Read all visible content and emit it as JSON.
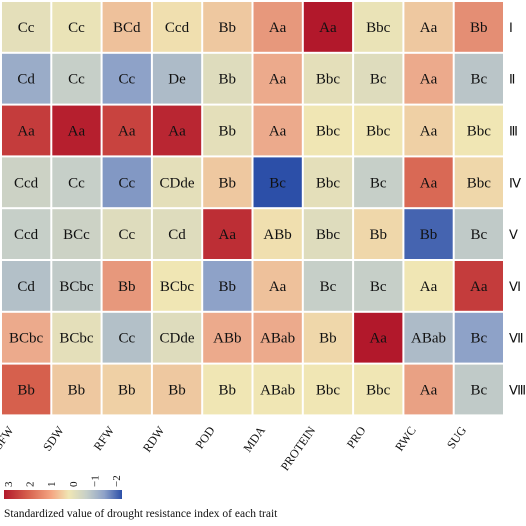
{
  "chart_data": {
    "type": "heatmap",
    "columns": [
      "SFW",
      "SDW",
      "RFW",
      "RDW",
      "POD",
      "MDA",
      "PROTEIN",
      "PRO",
      "RWC",
      "SUG"
    ],
    "rows": [
      "Ⅰ",
      "Ⅱ",
      "Ⅲ",
      "Ⅳ",
      "Ⅴ",
      "Ⅵ",
      "Ⅶ",
      "Ⅷ"
    ],
    "labels": [
      [
        "Cc",
        "Cc",
        "BCd",
        "Ccd",
        "Bb",
        "Aa",
        "Aa",
        "Bbc",
        "Aa",
        "Bb"
      ],
      [
        "Cd",
        "Cc",
        "Cc",
        "De",
        "Bb",
        "Aa",
        "Bbc",
        "Bc",
        "Aa",
        "Bc"
      ],
      [
        "Aa",
        "Aa",
        "Aa",
        "Aa",
        "Bb",
        "Aa",
        "Bbc",
        "Bbc",
        "Aa",
        "Bbc"
      ],
      [
        "Ccd",
        "Cc",
        "Cc",
        "CDde",
        "Bb",
        "Bc",
        "Bbc",
        "Bc",
        "Aa",
        "Bbc"
      ],
      [
        "Ccd",
        "BCc",
        "Cc",
        "Cd",
        "Aa",
        "ABb",
        "Bbc",
        "Bb",
        "Bb",
        "Bc"
      ],
      [
        "Cd",
        "BCbc",
        "Bb",
        "BCbc",
        "Bb",
        "Aa",
        "Bc",
        "Bc",
        "Aa",
        "Aa"
      ],
      [
        "BCbc",
        "BCbc",
        "Cc",
        "CDde",
        "ABb",
        "ABab",
        "Bb",
        "Aa",
        "ABab",
        "Bc"
      ],
      [
        "Bb",
        "Bb",
        "Bb",
        "Bb",
        "Bb",
        "ABab",
        "Bbc",
        "Bbc",
        "Aa",
        "Bc"
      ]
    ],
    "values": [
      [
        0.2,
        0.3,
        0.9,
        0.5,
        0.8,
        1.4,
        3.0,
        0.3,
        0.8,
        1.5
      ],
      [
        -1.0,
        -0.3,
        -1.2,
        -0.7,
        0.1,
        1.2,
        0.2,
        0.1,
        1.2,
        -0.5
      ],
      [
        2.5,
        2.9,
        2.4,
        2.8,
        0.2,
        1.2,
        0.4,
        0.4,
        0.7,
        0.4
      ],
      [
        -0.2,
        -0.3,
        -1.3,
        0.2,
        0.8,
        -2.0,
        0.2,
        -0.3,
        1.9,
        0.6
      ],
      [
        -0.3,
        -0.2,
        0.1,
        0.1,
        2.7,
        0.5,
        0.1,
        0.6,
        -1.8,
        -0.4
      ],
      [
        -0.6,
        -0.4,
        1.4,
        0.4,
        -1.2,
        0.9,
        -0.3,
        -0.3,
        0.4,
        2.5
      ],
      [
        1.2,
        0.2,
        -0.6,
        0.1,
        1.2,
        1.2,
        0.6,
        3.0,
        -0.7,
        -1.2
      ],
      [
        2.0,
        0.8,
        0.7,
        0.8,
        0.4,
        0.4,
        0.4,
        0.4,
        1.3,
        -0.4
      ]
    ],
    "colorbar": {
      "ticks": [
        "3",
        "2",
        "1",
        "0",
        "−1",
        "−2"
      ],
      "min": -2,
      "max": 3
    },
    "legend_title": "Standardized value of drought resistance index of each trait"
  }
}
